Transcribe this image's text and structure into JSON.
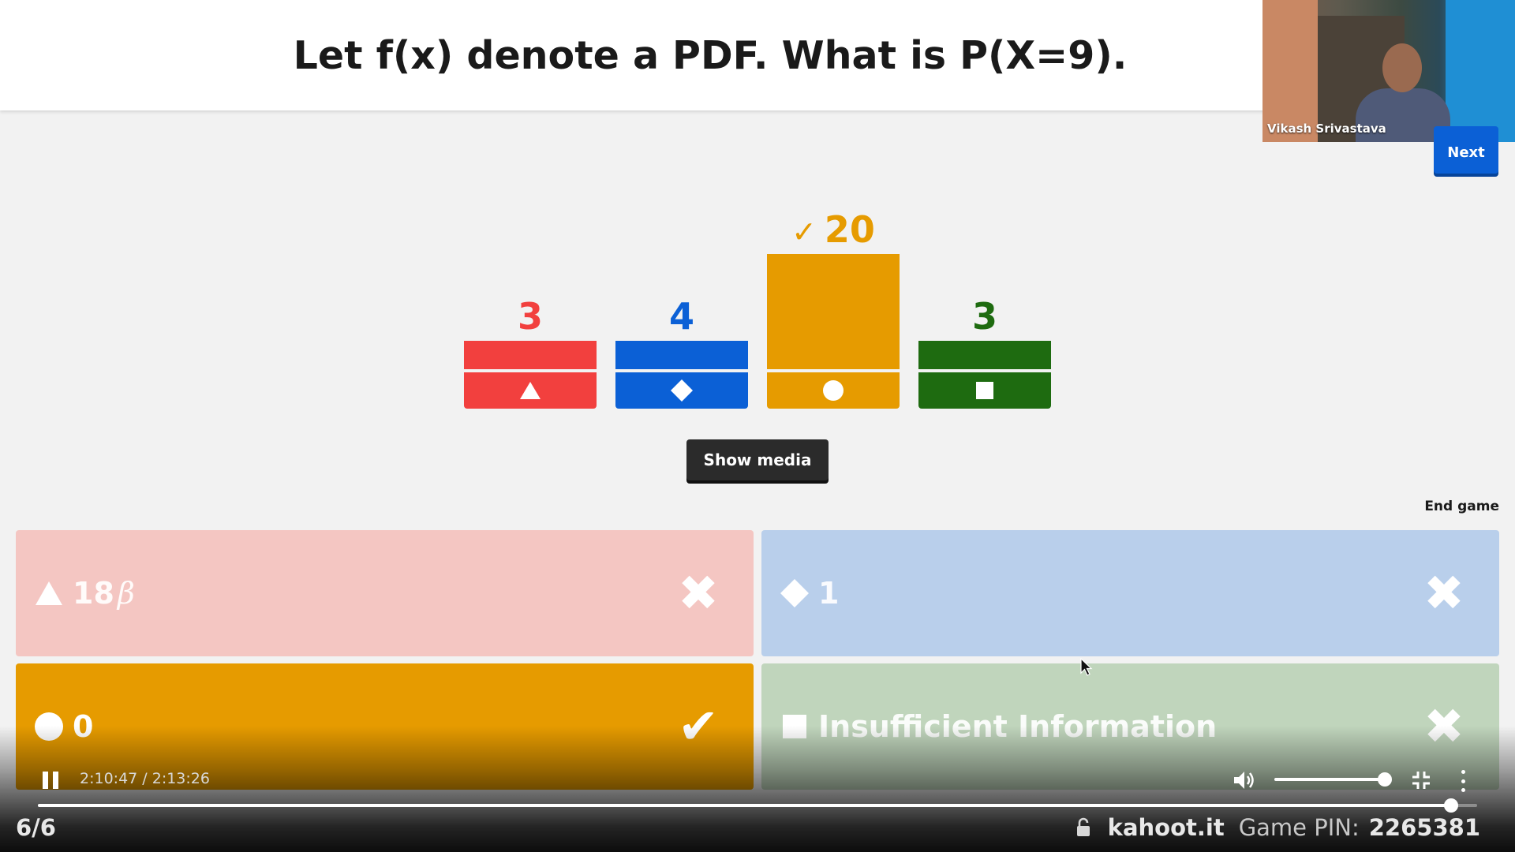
{
  "question": {
    "text": "Let f(x) denote a PDF. What is P(X=9)."
  },
  "video": {
    "participant_name": "Vikash Srivastava"
  },
  "controls": {
    "next_label": "Next",
    "show_media_label": "Show media",
    "end_game_label": "End game"
  },
  "chart_data": {
    "type": "bar",
    "categories": [
      "triangle",
      "diamond",
      "circle",
      "square"
    ],
    "values": [
      3,
      4,
      20,
      3
    ],
    "colors": [
      "#f2403e",
      "#0b60d6",
      "#e69b00",
      "#1e6b10"
    ],
    "correct_index": 2,
    "labels": [
      "3",
      "4",
      "20",
      "3"
    ],
    "check_symbol": "✓"
  },
  "answers": [
    {
      "shape": "triangle-icon",
      "text": "18",
      "suffix": "β",
      "result": "✖",
      "correct": false
    },
    {
      "shape": "diamond-icon",
      "text": "1",
      "suffix": "",
      "result": "✖",
      "correct": false
    },
    {
      "shape": "circle-icon",
      "text": "0",
      "suffix": "",
      "result": "✔",
      "correct": true
    },
    {
      "shape": "square-icon",
      "text": "Insufficient Information",
      "suffix": "",
      "result": "✖",
      "correct": false
    }
  ],
  "player": {
    "time": "2:10:47 / 2:13:26",
    "progress": 0.982,
    "volume": 1.0
  },
  "footer": {
    "question_count": "6/6",
    "brand": "kahoot.it",
    "pin_label": "Game PIN:",
    "pin_value": "2265381"
  }
}
